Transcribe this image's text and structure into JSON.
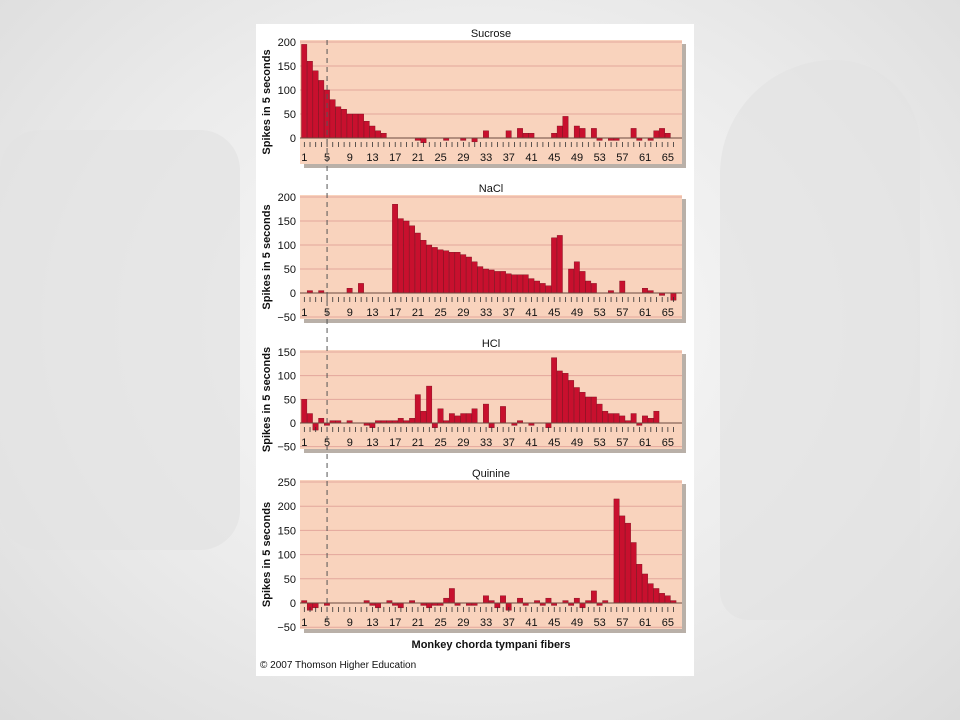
{
  "credit": "© 2007 Thomson Higher Education",
  "colors": {
    "panel_bg": "#f9d3bd",
    "bar": "#c8102e",
    "bar_dark": "#7a0a1b",
    "grid": "#e3a79c",
    "dashed": "#555555"
  },
  "chart_data": [
    {
      "type": "bar",
      "title": "Sucrose",
      "ylabel": "Spikes in 5 seconds",
      "xlabel": "",
      "ylim": [
        0,
        200
      ],
      "yticks": [
        0,
        50,
        100,
        150,
        200
      ],
      "xtick_labels": [
        "1",
        "5",
        "9",
        "13",
        "17",
        "21",
        "25",
        "29",
        "33",
        "37",
        "41",
        "45",
        "49",
        "53",
        "57",
        "61",
        "65"
      ],
      "grid": true,
      "x": [
        1,
        2,
        3,
        4,
        5,
        6,
        7,
        8,
        9,
        10,
        11,
        12,
        13,
        14,
        15,
        16,
        17,
        18,
        19,
        20,
        21,
        22,
        23,
        24,
        25,
        26,
        27,
        28,
        29,
        30,
        31,
        32,
        33,
        34,
        35,
        36,
        37,
        38,
        39,
        40,
        41,
        42,
        43,
        44,
        45,
        46,
        47,
        48,
        49,
        50,
        51,
        52,
        53,
        54,
        55,
        56,
        57,
        58,
        59,
        60,
        61,
        62,
        63,
        64,
        65,
        66
      ],
      "values": [
        195,
        160,
        140,
        120,
        100,
        80,
        65,
        60,
        50,
        50,
        50,
        35,
        25,
        15,
        10,
        0,
        0,
        0,
        0,
        0,
        -5,
        -10,
        0,
        0,
        0,
        -5,
        0,
        0,
        -5,
        0,
        -8,
        0,
        15,
        0,
        0,
        0,
        15,
        0,
        20,
        10,
        10,
        0,
        0,
        0,
        10,
        25,
        45,
        0,
        25,
        20,
        0,
        20,
        -5,
        0,
        -5,
        -5,
        0,
        0,
        20,
        -5,
        0,
        -5,
        15,
        20,
        10,
        0
      ]
    },
    {
      "type": "bar",
      "title": "NaCl",
      "ylabel": "Spikes in 5 seconds",
      "xlabel": "",
      "ylim": [
        -50,
        200
      ],
      "yticks": [
        -50,
        0,
        50,
        100,
        150,
        200
      ],
      "xtick_labels": [
        "1",
        "5",
        "9",
        "13",
        "17",
        "21",
        "25",
        "29",
        "33",
        "37",
        "41",
        "45",
        "49",
        "53",
        "57",
        "61",
        "65"
      ],
      "grid": true,
      "x": [
        1,
        2,
        3,
        4,
        5,
        6,
        7,
        8,
        9,
        10,
        11,
        12,
        13,
        14,
        15,
        16,
        17,
        18,
        19,
        20,
        21,
        22,
        23,
        24,
        25,
        26,
        27,
        28,
        29,
        30,
        31,
        32,
        33,
        34,
        35,
        36,
        37,
        38,
        39,
        40,
        41,
        42,
        43,
        44,
        45,
        46,
        47,
        48,
        49,
        50,
        51,
        52,
        53,
        54,
        55,
        56,
        57,
        58,
        59,
        60,
        61,
        62,
        63,
        64,
        65,
        66
      ],
      "values": [
        0,
        5,
        0,
        5,
        0,
        0,
        0,
        0,
        10,
        0,
        20,
        0,
        0,
        0,
        0,
        0,
        185,
        155,
        150,
        140,
        125,
        110,
        100,
        95,
        90,
        88,
        85,
        85,
        80,
        75,
        65,
        55,
        50,
        48,
        45,
        45,
        40,
        38,
        38,
        38,
        30,
        25,
        20,
        15,
        115,
        120,
        0,
        50,
        65,
        45,
        25,
        20,
        0,
        0,
        5,
        0,
        25,
        0,
        0,
        0,
        10,
        5,
        0,
        -5,
        0,
        -15
      ]
    },
    {
      "type": "bar",
      "title": "HCl",
      "ylabel": "Spikes in 5 seconds",
      "xlabel": "",
      "ylim": [
        -50,
        150
      ],
      "yticks": [
        -50,
        0,
        50,
        100,
        150
      ],
      "xtick_labels": [
        "1",
        "5",
        "9",
        "13",
        "17",
        "21",
        "25",
        "29",
        "33",
        "37",
        "41",
        "45",
        "49",
        "53",
        "57",
        "61",
        "65"
      ],
      "grid": true,
      "x": [
        1,
        2,
        3,
        4,
        5,
        6,
        7,
        8,
        9,
        10,
        11,
        12,
        13,
        14,
        15,
        16,
        17,
        18,
        19,
        20,
        21,
        22,
        23,
        24,
        25,
        26,
        27,
        28,
        29,
        30,
        31,
        32,
        33,
        34,
        35,
        36,
        37,
        38,
        39,
        40,
        41,
        42,
        43,
        44,
        45,
        46,
        47,
        48,
        49,
        50,
        51,
        52,
        53,
        54,
        55,
        56,
        57,
        58,
        59,
        60,
        61,
        62,
        63,
        64,
        65,
        66
      ],
      "values": [
        50,
        20,
        -15,
        10,
        -5,
        5,
        5,
        0,
        5,
        0,
        0,
        -5,
        -10,
        5,
        5,
        5,
        5,
        10,
        5,
        10,
        60,
        25,
        78,
        -10,
        30,
        5,
        20,
        15,
        20,
        20,
        30,
        0,
        40,
        -10,
        0,
        35,
        0,
        -5,
        5,
        0,
        -5,
        0,
        0,
        -10,
        138,
        110,
        105,
        90,
        75,
        65,
        55,
        55,
        40,
        25,
        20,
        20,
        15,
        5,
        20,
        -5,
        15,
        10,
        25,
        0,
        0,
        0
      ]
    },
    {
      "type": "bar",
      "title": "Quinine",
      "ylabel": "Spikes in 5 seconds",
      "xlabel": "Monkey chorda tympani fibers",
      "ylim": [
        -50,
        250
      ],
      "yticks": [
        -50,
        0,
        50,
        100,
        150,
        200,
        250
      ],
      "xtick_labels": [
        "1",
        "5",
        "9",
        "13",
        "17",
        "21",
        "25",
        "29",
        "33",
        "37",
        "41",
        "45",
        "49",
        "53",
        "57",
        "61",
        "65"
      ],
      "grid": true,
      "x": [
        1,
        2,
        3,
        4,
        5,
        6,
        7,
        8,
        9,
        10,
        11,
        12,
        13,
        14,
        15,
        16,
        17,
        18,
        19,
        20,
        21,
        22,
        23,
        24,
        25,
        26,
        27,
        28,
        29,
        30,
        31,
        32,
        33,
        34,
        35,
        36,
        37,
        38,
        39,
        40,
        41,
        42,
        43,
        44,
        45,
        46,
        47,
        48,
        49,
        50,
        51,
        52,
        53,
        54,
        55,
        56,
        57,
        58,
        59,
        60,
        61,
        62,
        63,
        64,
        65,
        66
      ],
      "values": [
        5,
        -15,
        -10,
        0,
        -5,
        0,
        0,
        0,
        0,
        0,
        0,
        5,
        -5,
        -10,
        0,
        5,
        -5,
        -10,
        0,
        5,
        0,
        -5,
        -10,
        -5,
        -5,
        10,
        30,
        -5,
        0,
        -5,
        -5,
        0,
        15,
        5,
        -10,
        15,
        -15,
        0,
        10,
        -5,
        0,
        5,
        -5,
        10,
        -5,
        0,
        5,
        -5,
        10,
        -10,
        5,
        25,
        -5,
        5,
        0,
        215,
        180,
        165,
        125,
        80,
        60,
        40,
        30,
        20,
        15,
        5
      ]
    }
  ]
}
